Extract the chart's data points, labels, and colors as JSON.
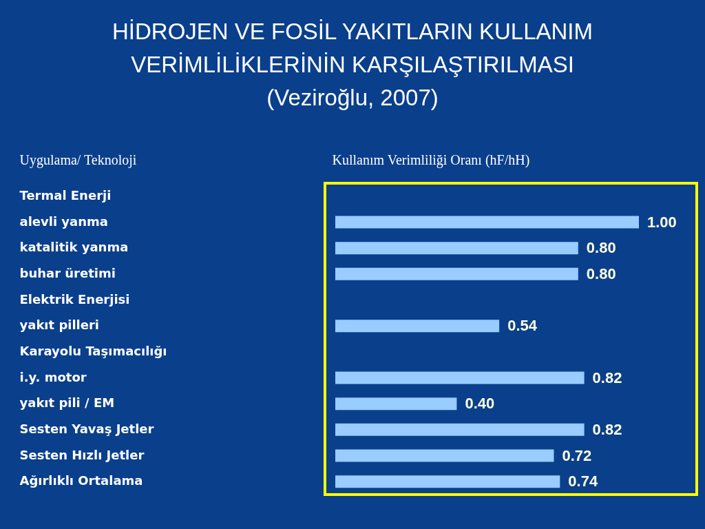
{
  "chart_data": {
    "type": "bar",
    "orientation": "horizontal",
    "title": "HİDROJEN VE FOSİL YAKITLARIN KULLANIM\nVERİMLİLİKLERİNİN KARŞILAŞTIRILMASI\n(Veziroğlu, 2007)",
    "ylabel": "Uygulama/ Teknoloji",
    "xlabel": "Kullanım Verimliliği Oranı (hF/hH)",
    "categories": [
      "Termal Enerji",
      "alevli yanma",
      "katalitik yanma",
      "buhar üretimi",
      "Elektrik Enerjisi",
      "yakıt pilleri",
      "Karayolu Taşımacılığı",
      "i.y. motor",
      "yakıt pili / EM",
      "Sesten Yavaş Jetler",
      "Sesten Hızlı Jetler",
      "Ağırlıklı Ortalama"
    ],
    "values": [
      null,
      1.0,
      0.8,
      0.8,
      null,
      0.54,
      null,
      0.82,
      0.4,
      0.82,
      0.72,
      0.74
    ],
    "value_labels": [
      null,
      "1.00",
      "0.80",
      "0.80",
      null,
      "0.54",
      null,
      "0.82",
      "0.40",
      "0.82",
      "0.72",
      "0.74"
    ],
    "color": "#99ccff",
    "tick_labels": "y"
  }
}
